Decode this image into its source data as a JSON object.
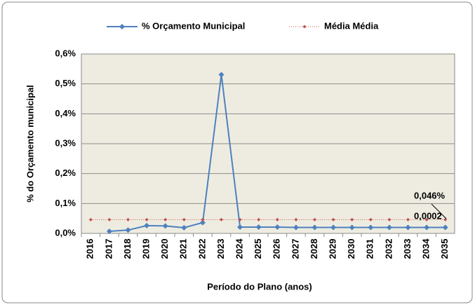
{
  "chart_data": {
    "type": "line",
    "y_label": "% do Orçamento municipal",
    "x_label": "Período do Plano (anos)",
    "categories": [
      "2016",
      "2017",
      "2018",
      "2019",
      "2020",
      "2021",
      "2022",
      "2023",
      "2024",
      "2025",
      "2026",
      "2027",
      "2028",
      "2029",
      "2030",
      "2031",
      "2032",
      "2033",
      "2034",
      "2035"
    ],
    "series": [
      {
        "name": "% Orçamento Municipal",
        "color": "#4f81bd",
        "style": "solid",
        "values": [
          null,
          0.007,
          0.011,
          0.026,
          0.025,
          0.019,
          0.036,
          0.531,
          0.021,
          0.021,
          0.021,
          0.02,
          0.02,
          0.02,
          0.02,
          0.02,
          0.02,
          0.02,
          0.02,
          0.02
        ]
      },
      {
        "name": "Média  Média",
        "color": "#c0504d",
        "style": "dotted",
        "values": [
          0.046,
          0.046,
          0.046,
          0.046,
          0.046,
          0.046,
          0.046,
          0.046,
          0.046,
          0.046,
          0.046,
          0.046,
          0.046,
          0.046,
          0.046,
          0.046,
          0.046,
          0.046,
          0.046,
          0.046
        ]
      }
    ],
    "annotations": [
      "0,046%",
      "0,0002"
    ],
    "ylim": [
      0,
      0.6
    ],
    "yticks": [
      {
        "value": 0,
        "label": "0,0%"
      },
      {
        "value": 0.1,
        "label": "0,1%"
      },
      {
        "value": 0.2,
        "label": "0,2%"
      },
      {
        "value": 0.3,
        "label": "0,3%"
      },
      {
        "value": 0.4,
        "label": "0,4%"
      },
      {
        "value": 0.5,
        "label": "0,5%"
      },
      {
        "value": 0.6,
        "label": "0,6%"
      }
    ],
    "grid": true,
    "legend": "top"
  }
}
